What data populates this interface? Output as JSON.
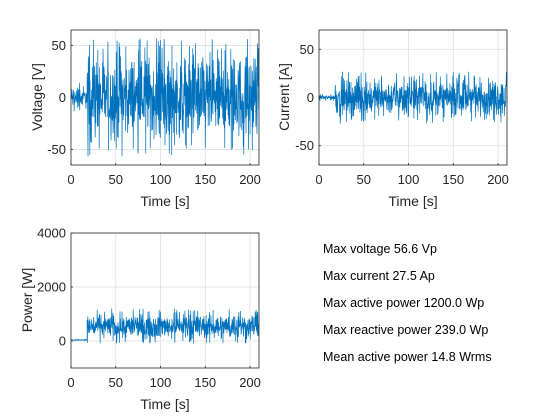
{
  "chart_data": [
    {
      "type": "line",
      "title": "",
      "xlabel": "Time [s]",
      "ylabel": "Voltage [V]",
      "xlim": [
        0,
        210
      ],
      "ylim": [
        -65,
        65
      ],
      "xticks": [
        0,
        50,
        100,
        150,
        200
      ],
      "yticks": [
        -50,
        0,
        50
      ],
      "grid": true,
      "color": "#0072BD",
      "series": [
        {
          "segments": [
            {
              "x_start": 0,
              "x_end": 18,
              "envelope_min": -16,
              "envelope_max": 16
            },
            {
              "x_start": 18,
              "x_end": 210,
              "envelope_min": -57,
              "envelope_max": 57
            }
          ]
        }
      ]
    },
    {
      "type": "line",
      "title": "",
      "xlabel": "Time [s]",
      "ylabel": "Current [A]",
      "xlim": [
        0,
        210
      ],
      "ylim": [
        -70,
        70
      ],
      "xticks": [
        0,
        50,
        100,
        150,
        200
      ],
      "yticks": [
        -50,
        0,
        50
      ],
      "grid": true,
      "color": "#0072BD",
      "series": [
        {
          "segments": [
            {
              "x_start": 0,
              "x_end": 18,
              "envelope_min": -4,
              "envelope_max": 4
            },
            {
              "x_start": 18,
              "x_end": 210,
              "envelope_min": -27,
              "envelope_max": 27
            }
          ]
        }
      ]
    },
    {
      "type": "line",
      "title": "",
      "xlabel": "Time [s]",
      "ylabel": "Power [W]",
      "xlim": [
        0,
        210
      ],
      "ylim": [
        -1000,
        4000
      ],
      "xticks": [
        0,
        50,
        100,
        150,
        200
      ],
      "yticks": [
        0,
        2000,
        4000
      ],
      "grid": true,
      "color": "#0072BD",
      "series": [
        {
          "segments": [
            {
              "x_start": 0,
              "x_end": 18,
              "envelope_min": 20,
              "envelope_max": 60
            },
            {
              "x_start": 18,
              "x_end": 210,
              "envelope_min": -100,
              "envelope_max": 1200
            }
          ]
        }
      ]
    }
  ],
  "stats": {
    "max_voltage": "Max voltage 56.6 Vp",
    "max_current": "Max current 27.5 Ap",
    "max_active_power": "Max active power 1200.0 Wp",
    "max_reactive_power": "Max reactive power 239.0 Wp",
    "mean_active_power": "Mean active power 14.8 Wrms"
  }
}
